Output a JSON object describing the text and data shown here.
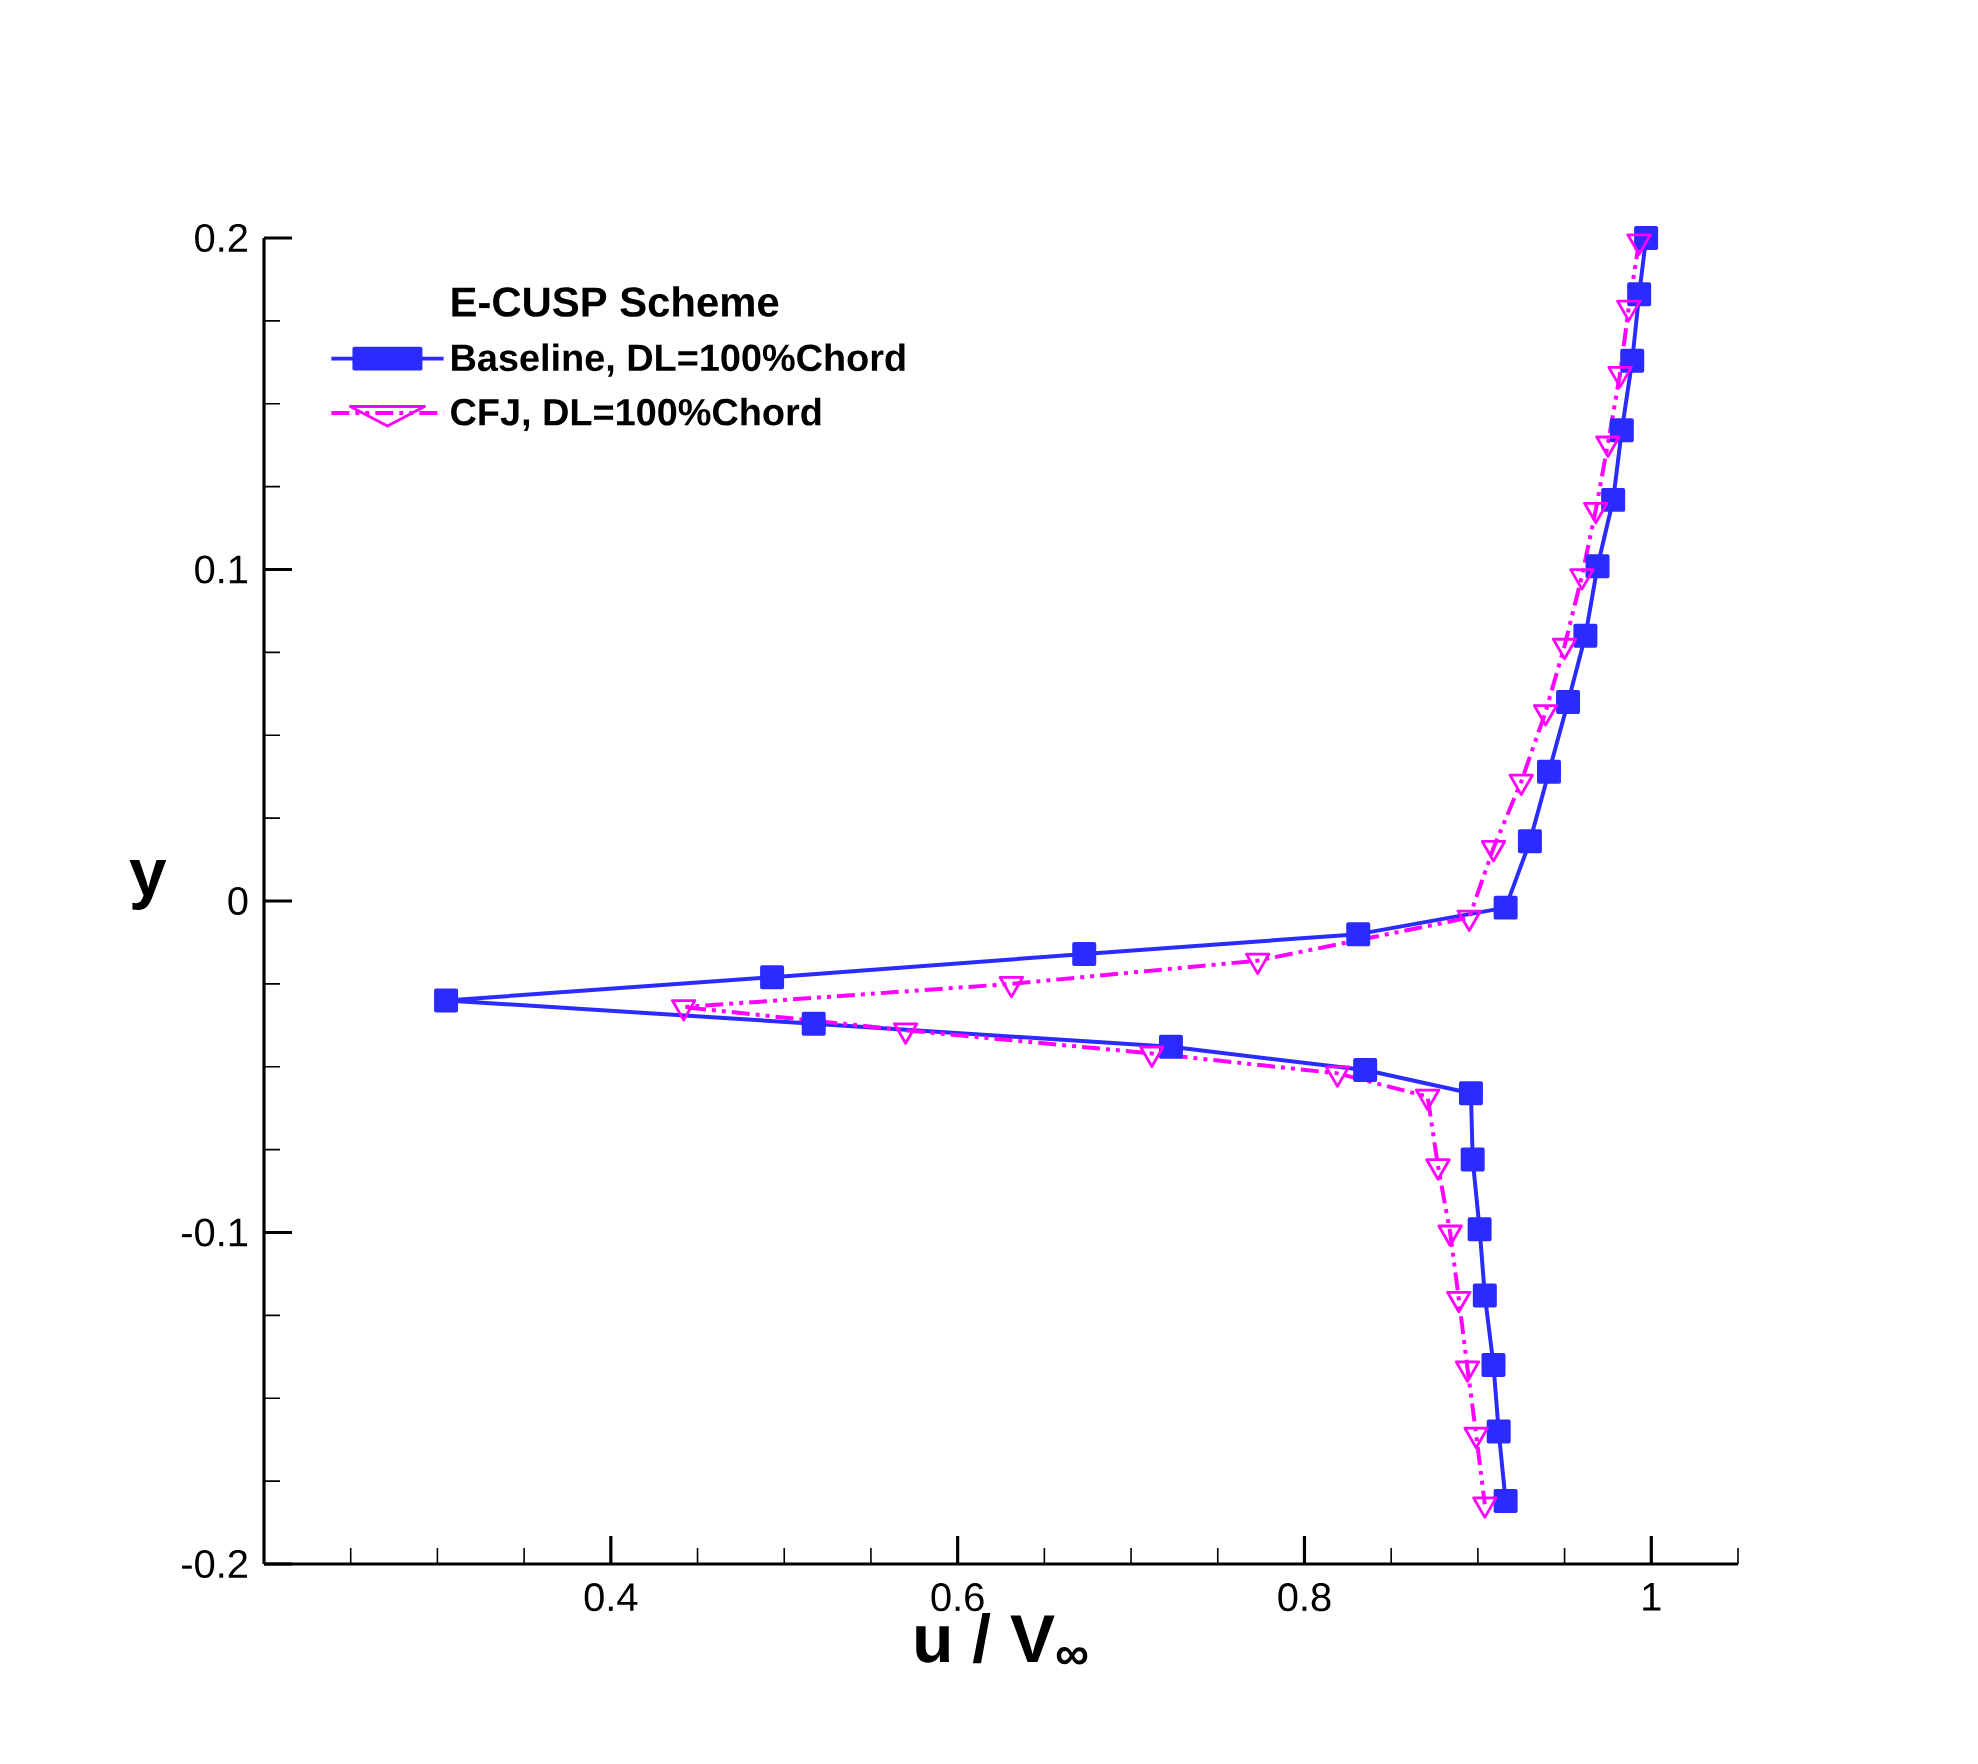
{
  "chart_data": {
    "type": "line",
    "xlabel": "u / V$_{∞}$",
    "ylabel": "y",
    "legend_title": "E-CUSP Scheme",
    "legend": "top left",
    "xlim": [
      0.2,
      1.05
    ],
    "ylim": [
      -0.2,
      0.2
    ],
    "xticks": [
      0.4,
      0.6,
      0.8,
      1
    ],
    "yticks": [
      -0.2,
      -0.1,
      0,
      0.1,
      0.2
    ],
    "series": [
      {
        "name": "Baseline, DL=100%Chord",
        "color": "#2b2bff",
        "marker": "square",
        "line_style": "solid",
        "x": [
          0.997,
          0.993,
          0.989,
          0.983,
          0.978,
          0.969,
          0.962,
          0.952,
          0.941,
          0.93,
          0.916,
          0.831,
          0.673,
          0.493,
          0.305,
          0.517,
          0.723,
          0.835,
          0.896,
          0.897,
          0.901,
          0.904,
          0.909,
          0.912,
          0.916
        ],
        "values": [
          0.2,
          0.183,
          0.163,
          0.142,
          0.121,
          0.101,
          0.08,
          0.06,
          0.039,
          0.018,
          -0.002,
          -0.01,
          -0.016,
          -0.023,
          -0.03,
          -0.037,
          -0.044,
          -0.051,
          -0.058,
          -0.078,
          -0.099,
          -0.119,
          -0.14,
          -0.16,
          -0.181
        ]
      },
      {
        "name": "CFJ, DL=100%Chord",
        "color": "#ff00ff",
        "marker": "triangle",
        "line_style": "dashed",
        "x": [
          0.993,
          0.987,
          0.982,
          0.975,
          0.968,
          0.96,
          0.95,
          0.939,
          0.925,
          0.909,
          0.895,
          0.773,
          0.631,
          0.442,
          0.57,
          0.712,
          0.819,
          0.871,
          0.877,
          0.884,
          0.889,
          0.894,
          0.899,
          0.904
        ],
        "values": [
          0.199,
          0.179,
          0.159,
          0.138,
          0.118,
          0.098,
          0.077,
          0.057,
          0.036,
          0.016,
          -0.005,
          -0.018,
          -0.025,
          -0.032,
          -0.039,
          -0.046,
          -0.052,
          -0.059,
          -0.08,
          -0.1,
          -0.12,
          -0.141,
          -0.161,
          -0.182
        ]
      }
    ]
  }
}
